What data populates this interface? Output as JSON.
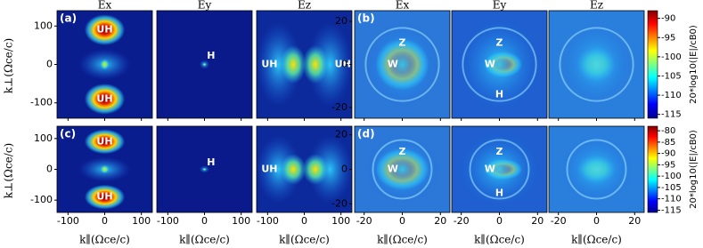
{
  "column_titles": [
    "Ex",
    "Ey",
    "Ez",
    "Ex",
    "Ey",
    "Ez"
  ],
  "x_label": "k∥(Ωce/c)",
  "y_label": "k⊥(Ωce/c)",
  "groups": [
    {
      "xlim": [
        -130,
        130
      ],
      "ylim": [
        -140,
        140
      ],
      "xticks": [
        -100,
        0,
        100
      ],
      "yticks": [
        -100,
        0,
        100
      ],
      "ez_ylim": [
        -25,
        25
      ],
      "ez_yticks": [
        -20,
        0,
        20
      ]
    },
    {
      "xlim": [
        -25,
        25
      ],
      "ylim": [
        -25,
        25
      ],
      "xticks": [
        -20,
        0,
        20
      ]
    }
  ],
  "rows": [
    {
      "panel_labels": [
        "(a)",
        "(b)"
      ],
      "annotations": [
        [
          "UH",
          "UH"
        ],
        [
          "H"
        ],
        [
          "UH",
          "UH"
        ],
        [
          "Z",
          "W"
        ],
        [
          "Z",
          "W",
          "H"
        ],
        []
      ],
      "colorbar": {
        "label": "20*log10(|E|/cB0)",
        "lim": [
          -116,
          -88
        ],
        "ticks": [
          -90,
          -95,
          -100,
          -105,
          -110,
          -115
        ]
      }
    },
    {
      "panel_labels": [
        "(c)",
        "(d)"
      ],
      "annotations": [
        [
          "UH",
          "UH"
        ],
        [
          "H"
        ],
        [
          "UH"
        ],
        [
          "Z",
          "W"
        ],
        [
          "Z",
          "W",
          "H"
        ],
        []
      ],
      "colorbar": {
        "label": "20*log10(|E|/cB0)",
        "lim": [
          -116,
          -78
        ],
        "ticks": [
          -80,
          -85,
          -90,
          -95,
          -100,
          -105,
          -110,
          -115
        ]
      }
    }
  ]
}
